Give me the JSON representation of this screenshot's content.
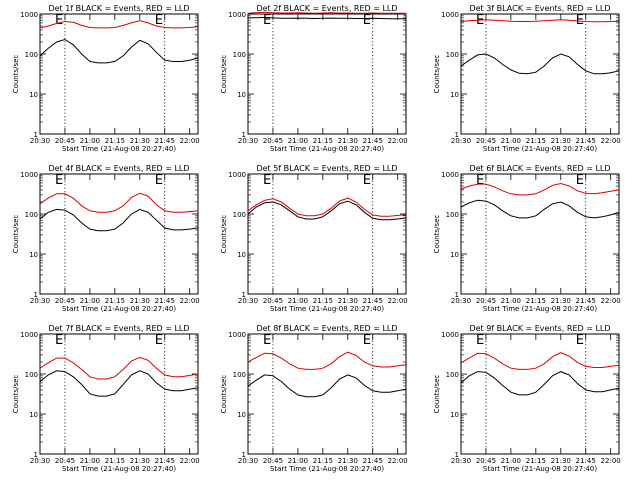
{
  "figure": {
    "series_colors": {
      "events": "#000000",
      "lld": "#e00000"
    },
    "x_tick_labels": [
      "20:30",
      "20:45",
      "21:00",
      "21:15",
      "21:30",
      "21:45",
      "22:00"
    ],
    "y_tick_labels": [
      "1",
      "10",
      "100",
      "1000"
    ]
  },
  "chart_data": [
    {
      "type": "line",
      "title": "Det 1f BLACK = Events, RED = LLD",
      "xlabel": "Start Time (21-Aug-08 20:27:40)",
      "ylabel": "Counts/sec",
      "yscale": "log",
      "ylim": [
        1,
        1000
      ],
      "xlim": [
        "20:30",
        "22:05"
      ],
      "event_markers": {
        "lines": [
          "20:45",
          "21:45"
        ],
        "labels": [
          "E",
          "E"
        ]
      },
      "x": [
        "20:30",
        "20:35",
        "20:40",
        "20:45",
        "20:50",
        "20:55",
        "21:00",
        "21:05",
        "21:10",
        "21:15",
        "21:20",
        "21:25",
        "21:30",
        "21:35",
        "21:40",
        "21:45",
        "21:50",
        "21:55",
        "22:00",
        "22:05"
      ],
      "series": [
        {
          "name": "Events",
          "values": [
            90,
            140,
            200,
            230,
            170,
            100,
            65,
            60,
            60,
            65,
            90,
            150,
            220,
            180,
            110,
            70,
            65,
            65,
            70,
            80
          ]
        },
        {
          "name": "LLD",
          "values": [
            450,
            500,
            580,
            650,
            620,
            520,
            460,
            450,
            450,
            460,
            520,
            600,
            680,
            600,
            500,
            460,
            450,
            450,
            460,
            480
          ]
        }
      ]
    },
    {
      "type": "line",
      "title": "Det 2f BLACK = Events, RED = LLD",
      "xlabel": "Start Time (21-Aug-08 20:27:40)",
      "ylabel": "Counts/sec",
      "yscale": "log",
      "ylim": [
        1,
        1000
      ],
      "xlim": [
        "20:30",
        "22:05"
      ],
      "event_markers": {
        "lines": [
          "20:45",
          "21:45"
        ],
        "labels": [
          "E",
          "E"
        ]
      },
      "x": [
        "20:30",
        "20:35",
        "20:40",
        "20:45",
        "20:50",
        "20:55",
        "21:00",
        "21:05",
        "21:10",
        "21:15",
        "21:20",
        "21:25",
        "21:30",
        "21:35",
        "21:40",
        "21:45",
        "21:50",
        "21:55",
        "22:00",
        "22:05"
      ],
      "series": [
        {
          "name": "Events",
          "values": [
            800,
            810,
            820,
            800,
            780,
            780,
            790,
            780,
            770,
            780,
            790,
            780,
            780,
            770,
            770,
            780,
            770,
            760,
            760,
            760
          ]
        },
        {
          "name": "LLD",
          "values": [
            1050,
            1080,
            1100,
            1080,
            1060,
            1060,
            1070,
            1060,
            1050,
            1060,
            1070,
            1060,
            1060,
            1050,
            1050,
            1060,
            1050,
            1040,
            1040,
            1040
          ]
        }
      ]
    },
    {
      "type": "line",
      "title": "Det 3f BLACK = Events, RED = LLD",
      "xlabel": "Start Time (21-Aug-08 20:27:40)",
      "ylabel": "Counts/sec",
      "yscale": "log",
      "ylim": [
        1,
        1000
      ],
      "xlim": [
        "20:30",
        "22:05"
      ],
      "event_markers": {
        "lines": [
          "20:45",
          "21:45"
        ],
        "labels": [
          "E",
          "E"
        ]
      },
      "x": [
        "20:30",
        "20:35",
        "20:40",
        "20:45",
        "20:50",
        "20:55",
        "21:00",
        "21:05",
        "21:10",
        "21:15",
        "21:20",
        "21:25",
        "21:30",
        "21:35",
        "21:40",
        "21:45",
        "21:50",
        "21:55",
        "22:00",
        "22:05"
      ],
      "series": [
        {
          "name": "Events",
          "values": [
            50,
            70,
            95,
            100,
            80,
            55,
            40,
            33,
            32,
            35,
            50,
            80,
            100,
            85,
            55,
            38,
            32,
            32,
            34,
            38
          ]
        },
        {
          "name": "LLD",
          "values": [
            650,
            680,
            700,
            720,
            700,
            680,
            660,
            650,
            650,
            660,
            680,
            700,
            720,
            700,
            670,
            650,
            640,
            640,
            650,
            660
          ]
        }
      ]
    },
    {
      "type": "line",
      "title": "Det 4f BLACK = Events, RED = LLD",
      "xlabel": "Start Time (21-Aug-08 20:27:40)",
      "ylabel": "Counts/sec",
      "yscale": "log",
      "ylim": [
        1,
        1000
      ],
      "xlim": [
        "20:30",
        "22:05"
      ],
      "event_markers": {
        "lines": [
          "20:45",
          "21:45"
        ],
        "labels": [
          "E",
          "E"
        ]
      },
      "x": [
        "20:30",
        "20:35",
        "20:40",
        "20:45",
        "20:50",
        "20:55",
        "21:00",
        "21:05",
        "21:10",
        "21:15",
        "21:20",
        "21:25",
        "21:30",
        "21:35",
        "21:40",
        "21:45",
        "21:50",
        "21:55",
        "22:00",
        "22:05"
      ],
      "series": [
        {
          "name": "Events",
          "values": [
            75,
            110,
            130,
            125,
            95,
            60,
            42,
            38,
            38,
            42,
            60,
            100,
            130,
            110,
            70,
            45,
            40,
            40,
            42,
            45
          ]
        },
        {
          "name": "LLD",
          "values": [
            180,
            250,
            320,
            320,
            250,
            160,
            120,
            110,
            110,
            120,
            160,
            260,
            330,
            280,
            170,
            120,
            110,
            110,
            115,
            120
          ]
        }
      ]
    },
    {
      "type": "line",
      "title": "Det 5f BLACK = Events, RED = LLD",
      "xlabel": "Start Time (21-Aug-08 20:27:40)",
      "ylabel": "Counts/sec",
      "yscale": "log",
      "ylim": [
        1,
        1000
      ],
      "xlim": [
        "20:30",
        "22:05"
      ],
      "event_markers": {
        "lines": [
          "20:45",
          "21:45"
        ],
        "labels": [
          "E",
          "E"
        ]
      },
      "x": [
        "20:30",
        "20:35",
        "20:40",
        "20:45",
        "20:50",
        "20:55",
        "21:00",
        "21:05",
        "21:10",
        "21:15",
        "21:20",
        "21:25",
        "21:30",
        "21:35",
        "21:40",
        "21:45",
        "21:50",
        "21:55",
        "22:00",
        "22:05"
      ],
      "series": [
        {
          "name": "Events",
          "values": [
            100,
            150,
            190,
            200,
            170,
            120,
            85,
            75,
            75,
            85,
            120,
            180,
            210,
            170,
            110,
            78,
            72,
            72,
            75,
            80
          ]
        },
        {
          "name": "LLD",
          "values": [
            120,
            170,
            220,
            240,
            200,
            140,
            100,
            90,
            90,
            100,
            140,
            210,
            250,
            200,
            130,
            95,
            88,
            88,
            92,
            95
          ]
        }
      ]
    },
    {
      "type": "line",
      "title": "Det 6f BLACK = Events, RED = LLD",
      "xlabel": "Start Time (21-Aug-08 20:27:40)",
      "ylabel": "Counts/sec",
      "yscale": "log",
      "ylim": [
        1,
        1000
      ],
      "xlim": [
        "20:30",
        "22:05"
      ],
      "event_markers": {
        "lines": [
          "20:45",
          "21:45"
        ],
        "labels": [
          "E",
          "E"
        ]
      },
      "x": [
        "20:30",
        "20:35",
        "20:40",
        "20:45",
        "20:50",
        "20:55",
        "21:00",
        "21:05",
        "21:10",
        "21:15",
        "21:20",
        "21:25",
        "21:30",
        "21:35",
        "21:40",
        "21:45",
        "21:50",
        "21:55",
        "22:00",
        "22:05"
      ],
      "series": [
        {
          "name": "Events",
          "values": [
            150,
            190,
            220,
            210,
            170,
            120,
            90,
            80,
            80,
            90,
            130,
            180,
            200,
            160,
            110,
            85,
            80,
            85,
            95,
            110
          ]
        },
        {
          "name": "LLD",
          "values": [
            420,
            500,
            560,
            560,
            480,
            380,
            320,
            300,
            300,
            320,
            400,
            520,
            580,
            500,
            380,
            330,
            320,
            340,
            370,
            400
          ]
        }
      ]
    },
    {
      "type": "line",
      "title": "Det 7f BLACK = Events, RED = LLD",
      "xlabel": "Start Time (21-Aug-08 20:27:40)",
      "ylabel": "Counts/sec",
      "yscale": "log",
      "ylim": [
        1,
        1000
      ],
      "xlim": [
        "20:30",
        "22:05"
      ],
      "event_markers": {
        "lines": [
          "20:45",
          "21:45"
        ],
        "labels": [
          "E",
          "E"
        ]
      },
      "x": [
        "20:30",
        "20:35",
        "20:40",
        "20:45",
        "20:50",
        "20:55",
        "21:00",
        "21:05",
        "21:10",
        "21:15",
        "21:20",
        "21:25",
        "21:30",
        "21:35",
        "21:40",
        "21:45",
        "21:50",
        "21:55",
        "22:00",
        "22:05"
      ],
      "series": [
        {
          "name": "Events",
          "values": [
            65,
            95,
            120,
            115,
            85,
            55,
            32,
            28,
            28,
            32,
            55,
            95,
            120,
            100,
            60,
            42,
            38,
            38,
            42,
            45
          ]
        },
        {
          "name": "LLD",
          "values": [
            140,
            190,
            250,
            250,
            190,
            130,
            85,
            75,
            75,
            85,
            130,
            210,
            260,
            220,
            140,
            95,
            85,
            85,
            92,
            100
          ]
        }
      ]
    },
    {
      "type": "line",
      "title": "Det 8f BLACK = Events, RED = LLD",
      "xlabel": "Start Time (21-Aug-08 20:27:40)",
      "ylabel": "Counts/sec",
      "yscale": "log",
      "ylim": [
        1,
        1000
      ],
      "xlim": [
        "20:30",
        "22:05"
      ],
      "event_markers": {
        "lines": [
          "20:45",
          "21:45"
        ],
        "labels": [
          "E",
          "E"
        ]
      },
      "x": [
        "20:30",
        "20:35",
        "20:40",
        "20:45",
        "20:50",
        "20:55",
        "21:00",
        "21:05",
        "21:10",
        "21:15",
        "21:20",
        "21:25",
        "21:30",
        "21:35",
        "21:40",
        "21:45",
        "21:50",
        "21:55",
        "22:00",
        "22:05"
      ],
      "series": [
        {
          "name": "Events",
          "values": [
            50,
            70,
            95,
            90,
            65,
            42,
            30,
            27,
            27,
            30,
            45,
            75,
            95,
            80,
            52,
            38,
            35,
            35,
            38,
            42
          ]
        },
        {
          "name": "LLD",
          "values": [
            200,
            260,
            330,
            320,
            250,
            180,
            140,
            130,
            130,
            140,
            180,
            270,
            350,
            290,
            200,
            160,
            150,
            150,
            160,
            170
          ]
        }
      ]
    },
    {
      "type": "line",
      "title": "Det 9f BLACK = Events, RED = LLD",
      "xlabel": "Start Time (21-Aug-08 20:27:40)",
      "ylabel": "Counts/sec",
      "yscale": "log",
      "ylim": [
        1,
        1000
      ],
      "xlim": [
        "20:30",
        "22:05"
      ],
      "event_markers": {
        "lines": [
          "20:45",
          "21:45"
        ],
        "labels": [
          "E",
          "E"
        ]
      },
      "x": [
        "20:30",
        "20:35",
        "20:40",
        "20:45",
        "20:50",
        "20:55",
        "21:00",
        "21:05",
        "21:10",
        "21:15",
        "21:20",
        "21:25",
        "21:30",
        "21:35",
        "21:40",
        "21:45",
        "21:50",
        "21:55",
        "22:00",
        "22:05"
      ],
      "series": [
        {
          "name": "Events",
          "values": [
            60,
            90,
            115,
            110,
            80,
            52,
            35,
            30,
            30,
            35,
            55,
            90,
            115,
            95,
            58,
            40,
            36,
            36,
            40,
            44
          ]
        },
        {
          "name": "LLD",
          "values": [
            190,
            250,
            330,
            320,
            250,
            180,
            140,
            130,
            130,
            140,
            180,
            270,
            340,
            280,
            195,
            155,
            145,
            145,
            155,
            165
          ]
        }
      ]
    }
  ]
}
